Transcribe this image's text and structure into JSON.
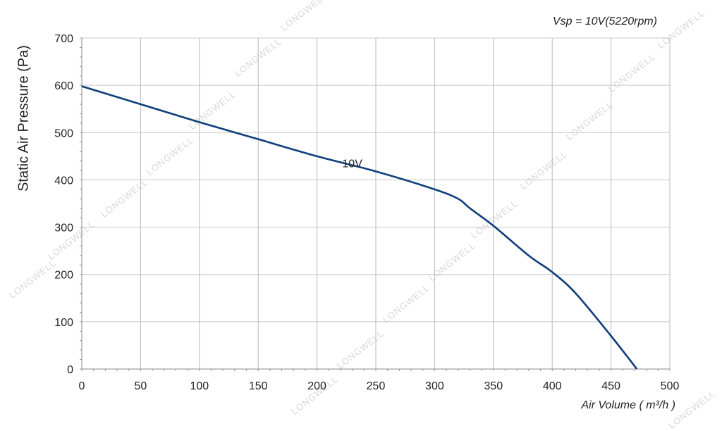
{
  "chart_data": {
    "type": "line",
    "annotation": "Vsp = 10V(5220rpm)",
    "xlabel": "Air Volume ( m³/h )",
    "ylabel": "Static Air Pressure  (Pa)",
    "xlim": [
      0,
      500
    ],
    "ylim": [
      0,
      700
    ],
    "x_ticks": [
      0,
      50,
      100,
      150,
      200,
      250,
      300,
      350,
      400,
      450,
      500
    ],
    "y_ticks": [
      0,
      100,
      200,
      300,
      400,
      500,
      600,
      700
    ],
    "grid": true,
    "series": [
      {
        "name": "10V",
        "color": "#0d3f7a",
        "x": [
          0,
          50,
          100,
          150,
          200,
          250,
          300,
          320,
          330,
          350,
          380,
          400,
          420,
          450,
          472
        ],
        "y": [
          598,
          560,
          522,
          486,
          450,
          418,
          380,
          360,
          340,
          303,
          240,
          205,
          160,
          70,
          0
        ]
      }
    ]
  },
  "watermark": {
    "text": "LONGWELL",
    "color": "#d8d8d8"
  }
}
